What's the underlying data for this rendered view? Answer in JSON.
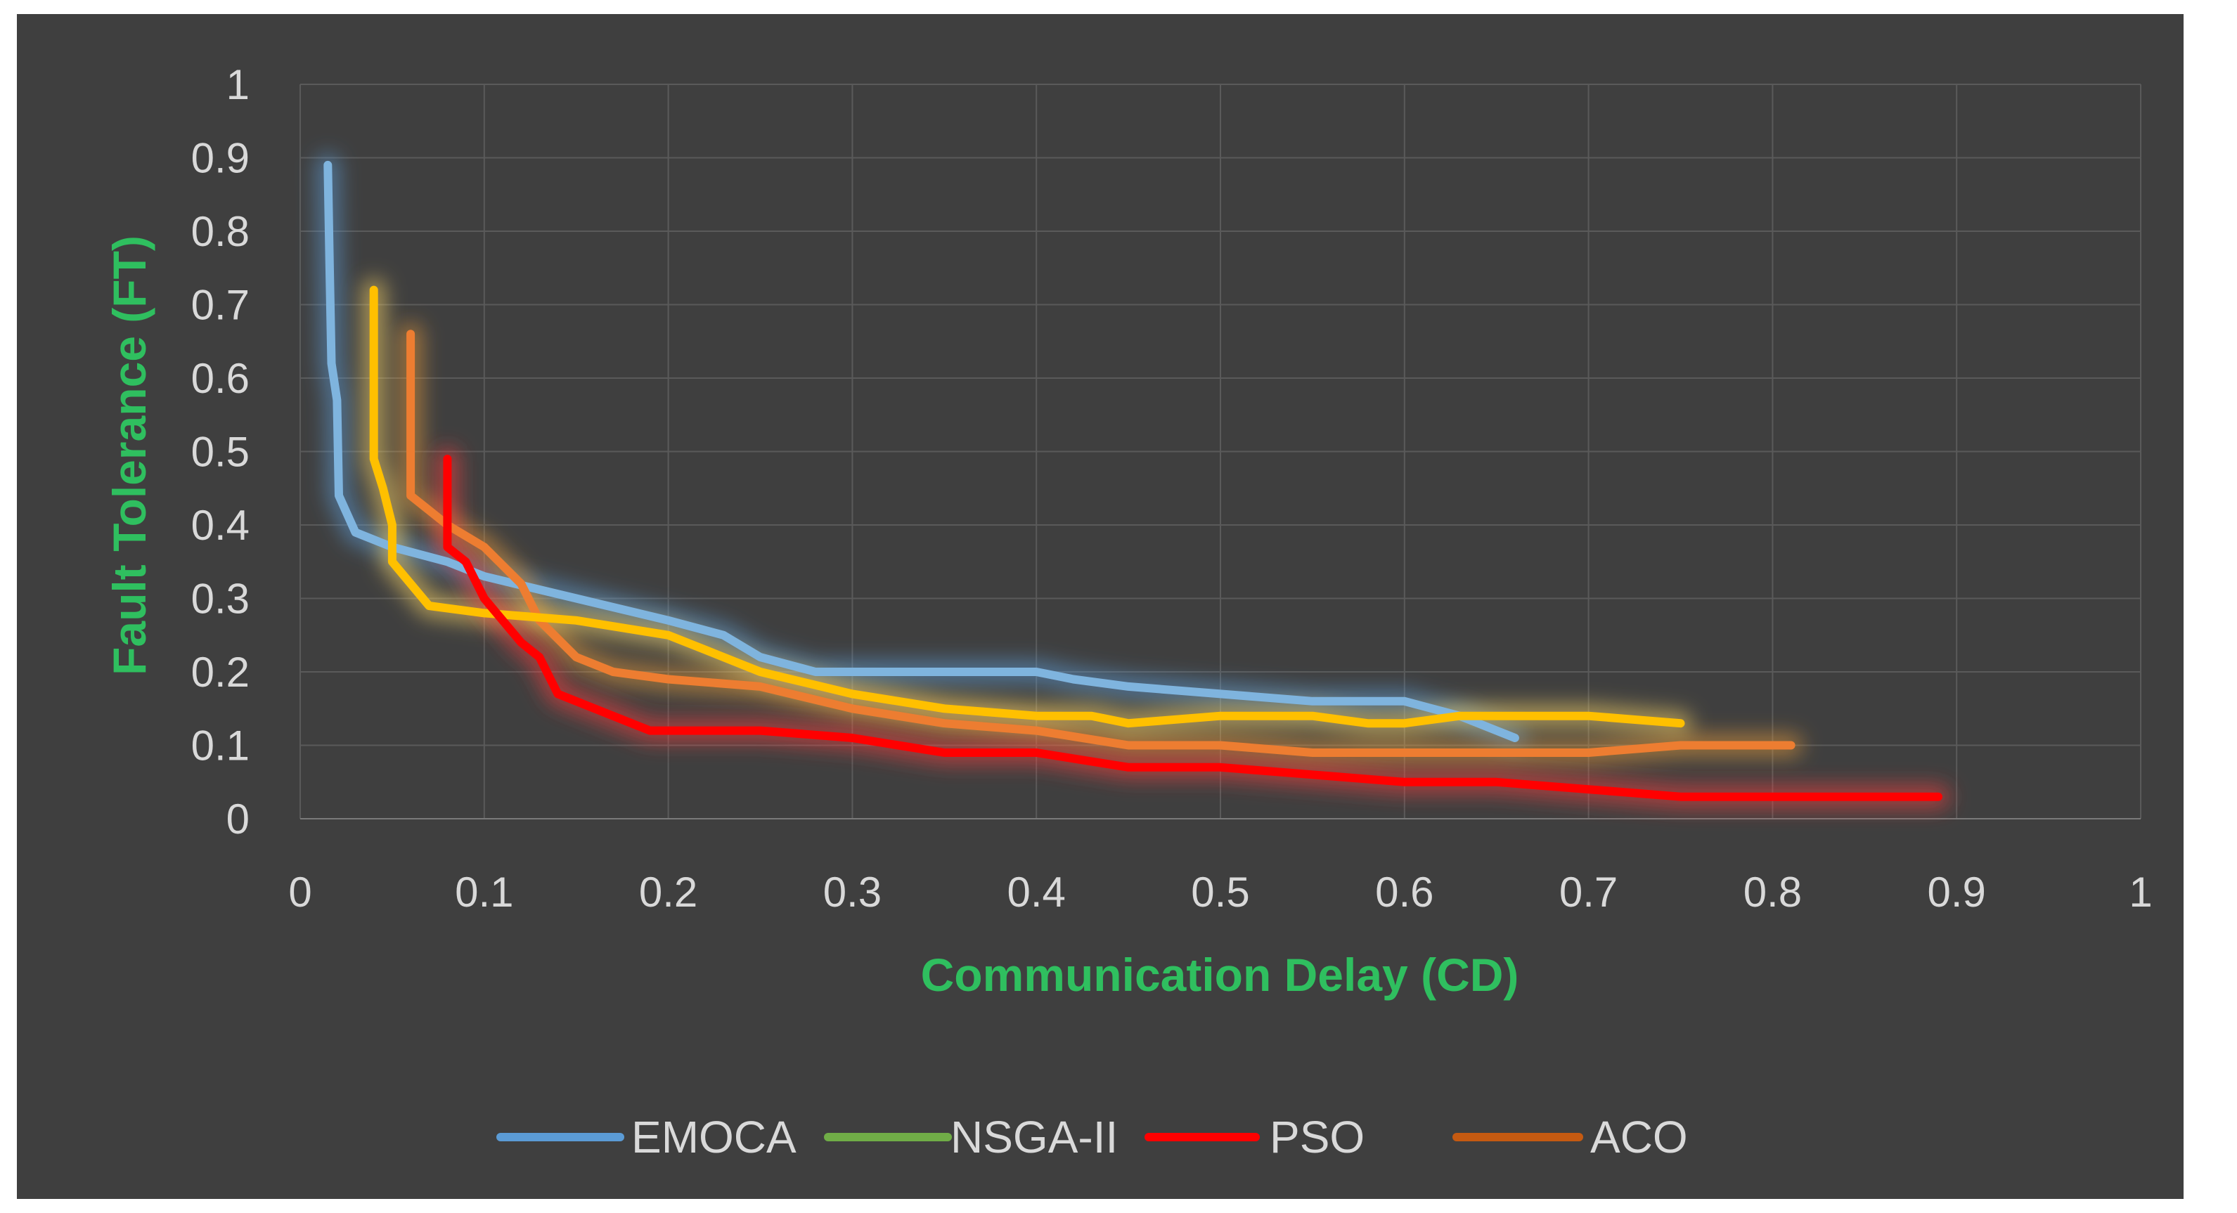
{
  "chart_data": {
    "type": "line",
    "title": "",
    "xlabel": "Communication Delay (CD)",
    "ylabel": "Fault Tolerance (FT)",
    "xlim": [
      0,
      1
    ],
    "ylim": [
      0,
      1
    ],
    "grid": true,
    "legend_position": "bottom",
    "x_ticks": [
      "0",
      "0.1",
      "0.2",
      "0.3",
      "0.4",
      "0.5",
      "0.6",
      "0.7",
      "0.8",
      "0.9",
      "1"
    ],
    "y_ticks": [
      "0",
      "0.1",
      "0.2",
      "0.3",
      "0.4",
      "0.5",
      "0.6",
      "0.7",
      "0.8",
      "0.9",
      "1"
    ],
    "legend": [
      {
        "name": "EMOCA",
        "color": "#5b9bd5"
      },
      {
        "name": "NSGA-II",
        "color": "#70ad47"
      },
      {
        "name": "PSO",
        "color": "#ff0000"
      },
      {
        "name": "ACO",
        "color": "#c55a11"
      }
    ],
    "series": [
      {
        "name": "EMOCA",
        "color": "#7fb4de",
        "glow": "#5b9bd5",
        "points": [
          [
            0.015,
            0.89
          ],
          [
            0.016,
            0.75
          ],
          [
            0.017,
            0.62
          ],
          [
            0.02,
            0.57
          ],
          [
            0.021,
            0.44
          ],
          [
            0.03,
            0.39
          ],
          [
            0.05,
            0.37
          ],
          [
            0.08,
            0.35
          ],
          [
            0.1,
            0.33
          ],
          [
            0.15,
            0.3
          ],
          [
            0.2,
            0.27
          ],
          [
            0.23,
            0.25
          ],
          [
            0.25,
            0.22
          ],
          [
            0.28,
            0.2
          ],
          [
            0.3,
            0.2
          ],
          [
            0.35,
            0.2
          ],
          [
            0.4,
            0.2
          ],
          [
            0.42,
            0.19
          ],
          [
            0.45,
            0.18
          ],
          [
            0.5,
            0.17
          ],
          [
            0.55,
            0.16
          ],
          [
            0.6,
            0.16
          ],
          [
            0.63,
            0.14
          ],
          [
            0.65,
            0.12
          ],
          [
            0.66,
            0.11
          ]
        ]
      },
      {
        "name": "ACO",
        "color": "#ed7d31",
        "glow": "#e89a3c",
        "points": [
          [
            0.06,
            0.66
          ],
          [
            0.06,
            0.44
          ],
          [
            0.07,
            0.42
          ],
          [
            0.08,
            0.4
          ],
          [
            0.1,
            0.37
          ],
          [
            0.12,
            0.32
          ],
          [
            0.13,
            0.27
          ],
          [
            0.15,
            0.22
          ],
          [
            0.17,
            0.2
          ],
          [
            0.2,
            0.19
          ],
          [
            0.25,
            0.18
          ],
          [
            0.3,
            0.15
          ],
          [
            0.35,
            0.13
          ],
          [
            0.4,
            0.12
          ],
          [
            0.45,
            0.1
          ],
          [
            0.5,
            0.1
          ],
          [
            0.55,
            0.09
          ],
          [
            0.6,
            0.09
          ],
          [
            0.7,
            0.09
          ],
          [
            0.75,
            0.1
          ],
          [
            0.8,
            0.1
          ],
          [
            0.81,
            0.1
          ]
        ]
      },
      {
        "name": "NSGA-II",
        "color": "#ffc000",
        "glow": "#ffd966",
        "points": [
          [
            0.04,
            0.72
          ],
          [
            0.04,
            0.49
          ],
          [
            0.045,
            0.45
          ],
          [
            0.05,
            0.4
          ],
          [
            0.05,
            0.35
          ],
          [
            0.06,
            0.32
          ],
          [
            0.07,
            0.29
          ],
          [
            0.1,
            0.28
          ],
          [
            0.15,
            0.27
          ],
          [
            0.2,
            0.25
          ],
          [
            0.22,
            0.23
          ],
          [
            0.25,
            0.2
          ],
          [
            0.3,
            0.17
          ],
          [
            0.35,
            0.15
          ],
          [
            0.4,
            0.14
          ],
          [
            0.43,
            0.14
          ],
          [
            0.45,
            0.13
          ],
          [
            0.5,
            0.14
          ],
          [
            0.55,
            0.14
          ],
          [
            0.58,
            0.13
          ],
          [
            0.6,
            0.13
          ],
          [
            0.63,
            0.14
          ],
          [
            0.7,
            0.14
          ],
          [
            0.75,
            0.13
          ]
        ]
      },
      {
        "name": "PSO",
        "color": "#ff0000",
        "glow": "#ff4040",
        "points": [
          [
            0.08,
            0.49
          ],
          [
            0.08,
            0.37
          ],
          [
            0.09,
            0.35
          ],
          [
            0.1,
            0.3
          ],
          [
            0.12,
            0.24
          ],
          [
            0.13,
            0.22
          ],
          [
            0.14,
            0.17
          ],
          [
            0.16,
            0.15
          ],
          [
            0.19,
            0.12
          ],
          [
            0.25,
            0.12
          ],
          [
            0.3,
            0.11
          ],
          [
            0.35,
            0.09
          ],
          [
            0.4,
            0.09
          ],
          [
            0.45,
            0.07
          ],
          [
            0.5,
            0.07
          ],
          [
            0.55,
            0.06
          ],
          [
            0.6,
            0.05
          ],
          [
            0.65,
            0.05
          ],
          [
            0.7,
            0.04
          ],
          [
            0.75,
            0.03
          ],
          [
            0.89,
            0.03
          ]
        ]
      }
    ]
  }
}
